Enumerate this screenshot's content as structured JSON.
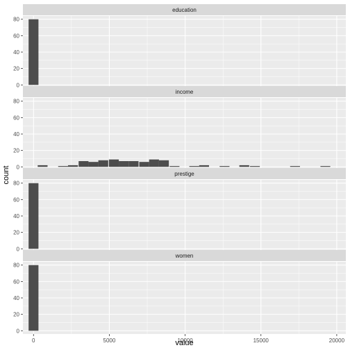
{
  "chart_data": {
    "type": "bar",
    "facets": [
      {
        "label": "education",
        "bins": [
          {
            "x": 0,
            "count": 80
          }
        ]
      },
      {
        "label": "income",
        "bins": [
          {
            "x": 600,
            "count": 2
          },
          {
            "x": 1950,
            "count": 1
          },
          {
            "x": 2600,
            "count": 2
          },
          {
            "x": 3300,
            "count": 7
          },
          {
            "x": 3950,
            "count": 6
          },
          {
            "x": 4600,
            "count": 8
          },
          {
            "x": 5300,
            "count": 9
          },
          {
            "x": 5950,
            "count": 7
          },
          {
            "x": 6600,
            "count": 7
          },
          {
            "x": 7300,
            "count": 6
          },
          {
            "x": 7950,
            "count": 9
          },
          {
            "x": 8600,
            "count": 8
          },
          {
            "x": 9300,
            "count": 1
          },
          {
            "x": 10600,
            "count": 1
          },
          {
            "x": 11250,
            "count": 2
          },
          {
            "x": 12600,
            "count": 1
          },
          {
            "x": 13900,
            "count": 2
          },
          {
            "x": 14600,
            "count": 1
          },
          {
            "x": 17250,
            "count": 1
          },
          {
            "x": 19250,
            "count": 1
          }
        ]
      },
      {
        "label": "prestige",
        "bins": [
          {
            "x": 0,
            "count": 80
          }
        ]
      },
      {
        "label": "women",
        "bins": [
          {
            "x": 0,
            "count": 80
          }
        ]
      }
    ],
    "xlabel": "value",
    "ylabel": "count",
    "xlim": [
      -700,
      20600
    ],
    "ylim": [
      -4,
      84
    ],
    "xticks": [
      0,
      5000,
      10000,
      15000,
      20000
    ],
    "xtick_labels": [
      "0",
      "5000",
      "10000",
      "15000",
      "20000"
    ],
    "yticks": [
      0,
      20,
      40,
      60,
      80
    ],
    "ytick_labels": [
      "0",
      "20",
      "40",
      "60",
      "80"
    ],
    "bin_width": 650,
    "grid": true,
    "colors": {
      "panel_background": "#ebebeb",
      "grid_major": "#ffffff",
      "strip_background": "#d9d9d9",
      "bar_fill": "#4d4d4d"
    }
  }
}
